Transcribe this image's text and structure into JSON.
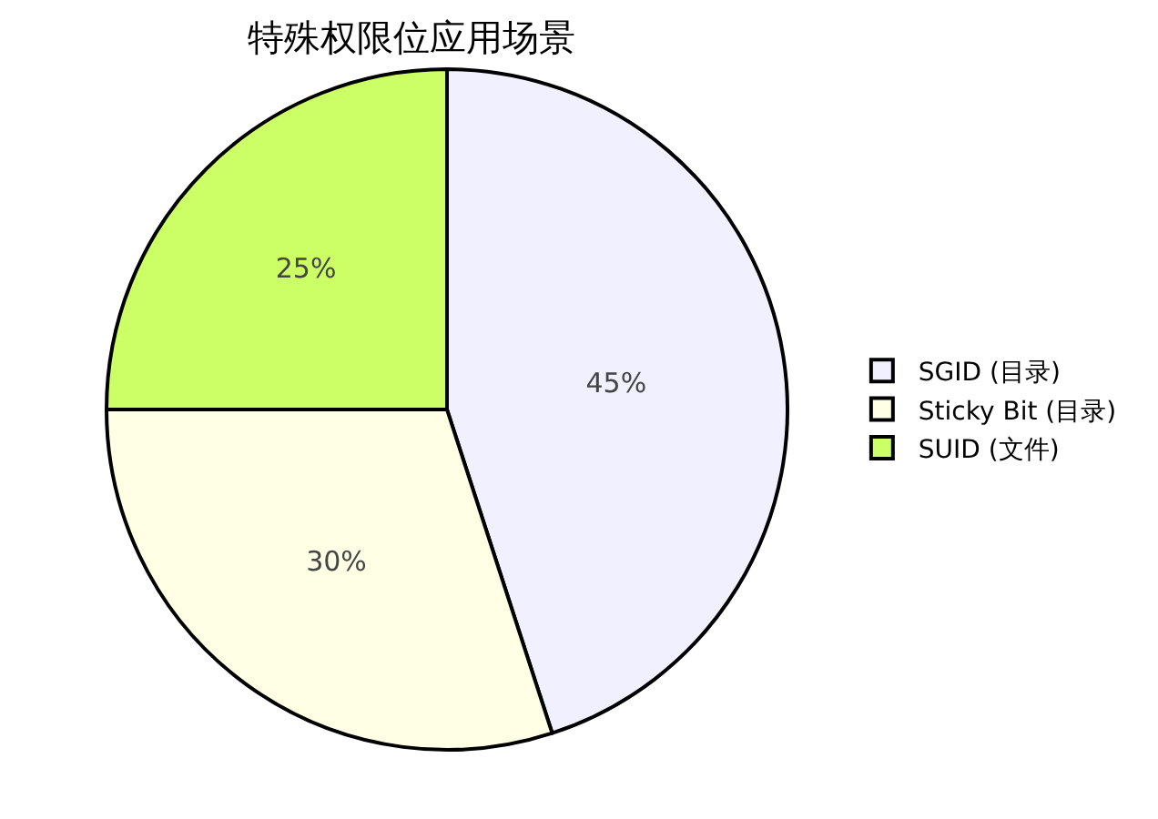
{
  "chart_data": {
    "type": "pie",
    "title": "特殊权限位应用场景",
    "categories": [
      "SGID (目录)",
      "Sticky Bit (目录)",
      "SUID (文件)"
    ],
    "values": [
      45,
      30,
      25
    ],
    "colors": [
      "#f0f0ff",
      "#ffffe6",
      "#ccff66"
    ],
    "value_labels": [
      "45%",
      "30%",
      "25%"
    ],
    "legend": "right"
  }
}
